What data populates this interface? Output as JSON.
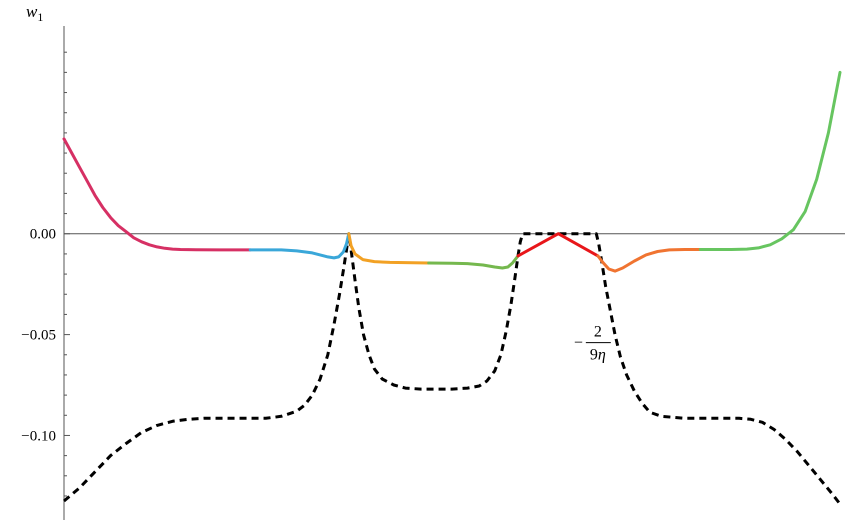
{
  "chart_data": {
    "type": "line",
    "title": "",
    "ylabel_main": "w",
    "ylabel_sub": "1",
    "xlim": [
      0,
      100
    ],
    "ylim": [
      -0.132,
      0.102
    ],
    "yticks": [
      {
        "value": 0.0,
        "label": "0.00"
      },
      {
        "value": -0.05,
        "label": "−0.05"
      },
      {
        "value": -0.1,
        "label": "−0.10"
      }
    ],
    "minor_yticks": [
      0.09,
      0.08,
      0.07,
      0.06,
      0.05,
      0.04,
      0.03,
      0.02,
      0.01,
      -0.01,
      -0.02,
      -0.03,
      -0.04,
      -0.06,
      -0.07,
      -0.08,
      -0.09,
      -0.11,
      -0.12,
      -0.13
    ],
    "annotation": {
      "minus": "−",
      "numerator": "2",
      "denominator": "9",
      "symbol": "η",
      "x": 65.7,
      "y": -0.054
    },
    "series": [
      {
        "color": "#d63064",
        "style": "solid",
        "points": [
          [
            0,
            0.047
          ],
          [
            1,
            0.04
          ],
          [
            2,
            0.033
          ],
          [
            3,
            0.026
          ],
          [
            4,
            0.019
          ],
          [
            5,
            0.013
          ],
          [
            6,
            0.008
          ],
          [
            7,
            0.004
          ],
          [
            8,
            0.001
          ],
          [
            9,
            -0.002
          ],
          [
            10,
            -0.004
          ],
          [
            11,
            -0.0055
          ],
          [
            12,
            -0.0065
          ],
          [
            13,
            -0.0072
          ],
          [
            14,
            -0.0076
          ],
          [
            15,
            -0.0078
          ],
          [
            17,
            -0.0079
          ],
          [
            20,
            -0.008
          ],
          [
            24,
            -0.008
          ]
        ]
      },
      {
        "color": "#3aa7d9",
        "style": "solid",
        "points": [
          [
            24,
            -0.008
          ],
          [
            26,
            -0.008
          ],
          [
            28,
            -0.008
          ],
          [
            30,
            -0.0085
          ],
          [
            32,
            -0.0095
          ],
          [
            33,
            -0.0105
          ],
          [
            34,
            -0.0115
          ],
          [
            34.8,
            -0.012
          ],
          [
            35.4,
            -0.0115
          ],
          [
            36,
            -0.009
          ],
          [
            36.4,
            -0.005
          ],
          [
            36.7,
            0
          ]
        ]
      },
      {
        "color": "#f2a124",
        "style": "solid",
        "points": [
          [
            36.7,
            0
          ],
          [
            37,
            -0.006
          ],
          [
            37.5,
            -0.01
          ],
          [
            38.5,
            -0.0128
          ],
          [
            40,
            -0.0138
          ],
          [
            42,
            -0.0142
          ],
          [
            45,
            -0.0144
          ],
          [
            47,
            -0.0145
          ]
        ]
      },
      {
        "color": "#75b84e",
        "style": "solid",
        "points": [
          [
            47,
            -0.0145
          ],
          [
            50,
            -0.0146
          ],
          [
            52,
            -0.0148
          ],
          [
            54,
            -0.0155
          ],
          [
            55.5,
            -0.0165
          ],
          [
            56.5,
            -0.017
          ],
          [
            57.2,
            -0.0165
          ],
          [
            57.8,
            -0.0145
          ],
          [
            58.5,
            -0.011
          ]
        ]
      },
      {
        "color": "#e8161a",
        "style": "solid",
        "points": [
          [
            58.5,
            -0.011
          ],
          [
            63.7,
            0
          ],
          [
            68.8,
            -0.011
          ]
        ]
      },
      {
        "color": "#f07431",
        "style": "solid",
        "points": [
          [
            68.8,
            -0.011
          ],
          [
            69.4,
            -0.014
          ],
          [
            70.2,
            -0.0175
          ],
          [
            71,
            -0.0185
          ],
          [
            72,
            -0.017
          ],
          [
            73.5,
            -0.0135
          ],
          [
            75,
            -0.0105
          ],
          [
            76.5,
            -0.0088
          ],
          [
            78,
            -0.008
          ],
          [
            80,
            -0.0078
          ],
          [
            82,
            -0.0078
          ]
        ]
      },
      {
        "color": "#67c560",
        "style": "solid",
        "points": [
          [
            82,
            -0.0078
          ],
          [
            86,
            -0.0078
          ],
          [
            88,
            -0.0076
          ],
          [
            89.5,
            -0.007
          ],
          [
            91,
            -0.0055
          ],
          [
            92.5,
            -0.0025
          ],
          [
            94,
            0.002
          ],
          [
            95.5,
            0.011
          ],
          [
            97,
            0.027
          ],
          [
            98.5,
            0.05
          ],
          [
            100,
            0.08
          ]
        ]
      },
      {
        "color": "#000000",
        "style": "dashed",
        "points": [
          [
            0,
            -0.1325
          ],
          [
            2,
            -0.126
          ],
          [
            4,
            -0.118
          ],
          [
            6,
            -0.11
          ],
          [
            8,
            -0.104
          ],
          [
            10,
            -0.0985
          ],
          [
            12,
            -0.095
          ],
          [
            14,
            -0.093
          ],
          [
            16,
            -0.092
          ],
          [
            18,
            -0.0915
          ],
          [
            22,
            -0.0915
          ],
          [
            26,
            -0.0915
          ],
          [
            28,
            -0.0905
          ],
          [
            30,
            -0.088
          ],
          [
            31,
            -0.085
          ],
          [
            32,
            -0.08
          ],
          [
            33,
            -0.072
          ],
          [
            34,
            -0.06
          ],
          [
            34.8,
            -0.045
          ],
          [
            35.5,
            -0.03
          ],
          [
            36,
            -0.018
          ],
          [
            36.4,
            -0.008
          ],
          [
            36.7,
            0
          ],
          [
            37,
            -0.008
          ],
          [
            37.5,
            -0.023
          ],
          [
            38,
            -0.037
          ],
          [
            38.6,
            -0.05
          ],
          [
            39.3,
            -0.06
          ],
          [
            40,
            -0.067
          ],
          [
            41,
            -0.072
          ],
          [
            42.5,
            -0.075
          ],
          [
            44,
            -0.0765
          ],
          [
            46,
            -0.077
          ],
          [
            50,
            -0.077
          ],
          [
            52,
            -0.0765
          ],
          [
            53.5,
            -0.0755
          ],
          [
            54.5,
            -0.073
          ],
          [
            55.5,
            -0.068
          ],
          [
            56.3,
            -0.06
          ],
          [
            57,
            -0.048
          ],
          [
            57.6,
            -0.035
          ],
          [
            58.1,
            -0.022
          ],
          [
            58.5,
            -0.011
          ],
          [
            58.8,
            -0.004
          ],
          [
            59.1,
            0
          ],
          [
            60,
            0
          ],
          [
            64,
            0
          ],
          [
            68,
            0
          ],
          [
            68.6,
            0
          ],
          [
            68.9,
            -0.005
          ],
          [
            69.3,
            -0.014
          ],
          [
            69.8,
            -0.026
          ],
          [
            70.4,
            -0.038
          ],
          [
            71,
            -0.05
          ],
          [
            71.7,
            -0.061
          ],
          [
            72.5,
            -0.07
          ],
          [
            73.5,
            -0.078
          ],
          [
            74.5,
            -0.084
          ],
          [
            75.5,
            -0.0885
          ],
          [
            77,
            -0.0905
          ],
          [
            80,
            -0.0915
          ],
          [
            84,
            -0.0915
          ],
          [
            87,
            -0.0915
          ],
          [
            88.5,
            -0.092
          ],
          [
            90,
            -0.0935
          ],
          [
            91.5,
            -0.097
          ],
          [
            93,
            -0.102
          ],
          [
            94.5,
            -0.108
          ],
          [
            96,
            -0.115
          ],
          [
            97.5,
            -0.122
          ],
          [
            99,
            -0.129
          ],
          [
            100,
            -0.134
          ]
        ]
      }
    ]
  }
}
